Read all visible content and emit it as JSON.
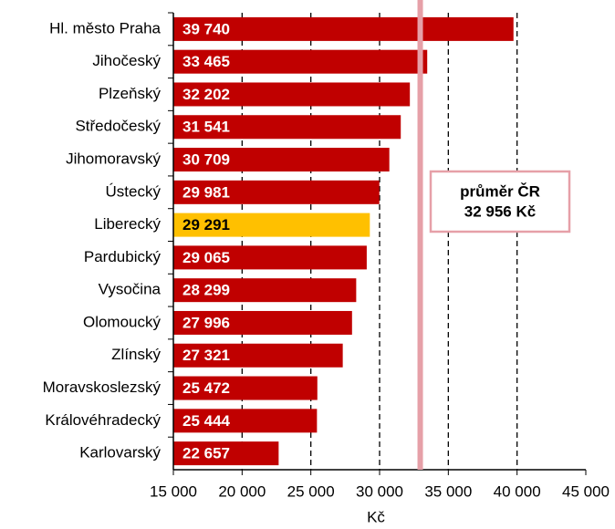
{
  "chart_data": {
    "type": "barh",
    "categories": [
      "Hl. město Praha",
      "Jihočeský",
      "Plzeňský",
      "Středočeský",
      "Jihomoravský",
      "Ústecký",
      "Liberecký",
      "Pardubický",
      "Vysočina",
      "Olomoucký",
      "Zlínský",
      "Moravskoslezský",
      "Královéhradecký",
      "Karlovarský"
    ],
    "values": [
      39740,
      33465,
      32202,
      31541,
      30709,
      29981,
      29291,
      29065,
      28299,
      27996,
      27321,
      25472,
      25444,
      22657
    ],
    "value_labels": [
      "39 740",
      "33 465",
      "32 202",
      "31 541",
      "30 709",
      "29 981",
      "29 291",
      "29 065",
      "28 299",
      "27 996",
      "27 321",
      "25 472",
      "25 444",
      "22 657"
    ],
    "colors": [
      "#c00000",
      "#c00000",
      "#c00000",
      "#c00000",
      "#c00000",
      "#c00000",
      "#ffc000",
      "#c00000",
      "#c00000",
      "#c00000",
      "#c00000",
      "#c00000",
      "#c00000",
      "#c00000"
    ],
    "label_colors": [
      "#ffffff",
      "#ffffff",
      "#ffffff",
      "#ffffff",
      "#ffffff",
      "#ffffff",
      "#000000",
      "#ffffff",
      "#ffffff",
      "#ffffff",
      "#ffffff",
      "#ffffff",
      "#ffffff",
      "#ffffff"
    ],
    "xlabel": "Kč",
    "xlim": [
      15000,
      45000
    ],
    "xticks": [
      {
        "value": 15000,
        "label": "15 000"
      },
      {
        "value": 20000,
        "label": "20 000"
      },
      {
        "value": 25000,
        "label": "25 000"
      },
      {
        "value": 30000,
        "label": "30 000"
      },
      {
        "value": 35000,
        "label": "35 000"
      },
      {
        "value": 40000,
        "label": "40 000"
      },
      {
        "value": 45000,
        "label": "45 000"
      }
    ],
    "grid": true,
    "reference_line": {
      "value": 32956,
      "color": "#e6a0a8",
      "label": [
        "průměr ČR",
        "32 956 Kč"
      ]
    }
  }
}
